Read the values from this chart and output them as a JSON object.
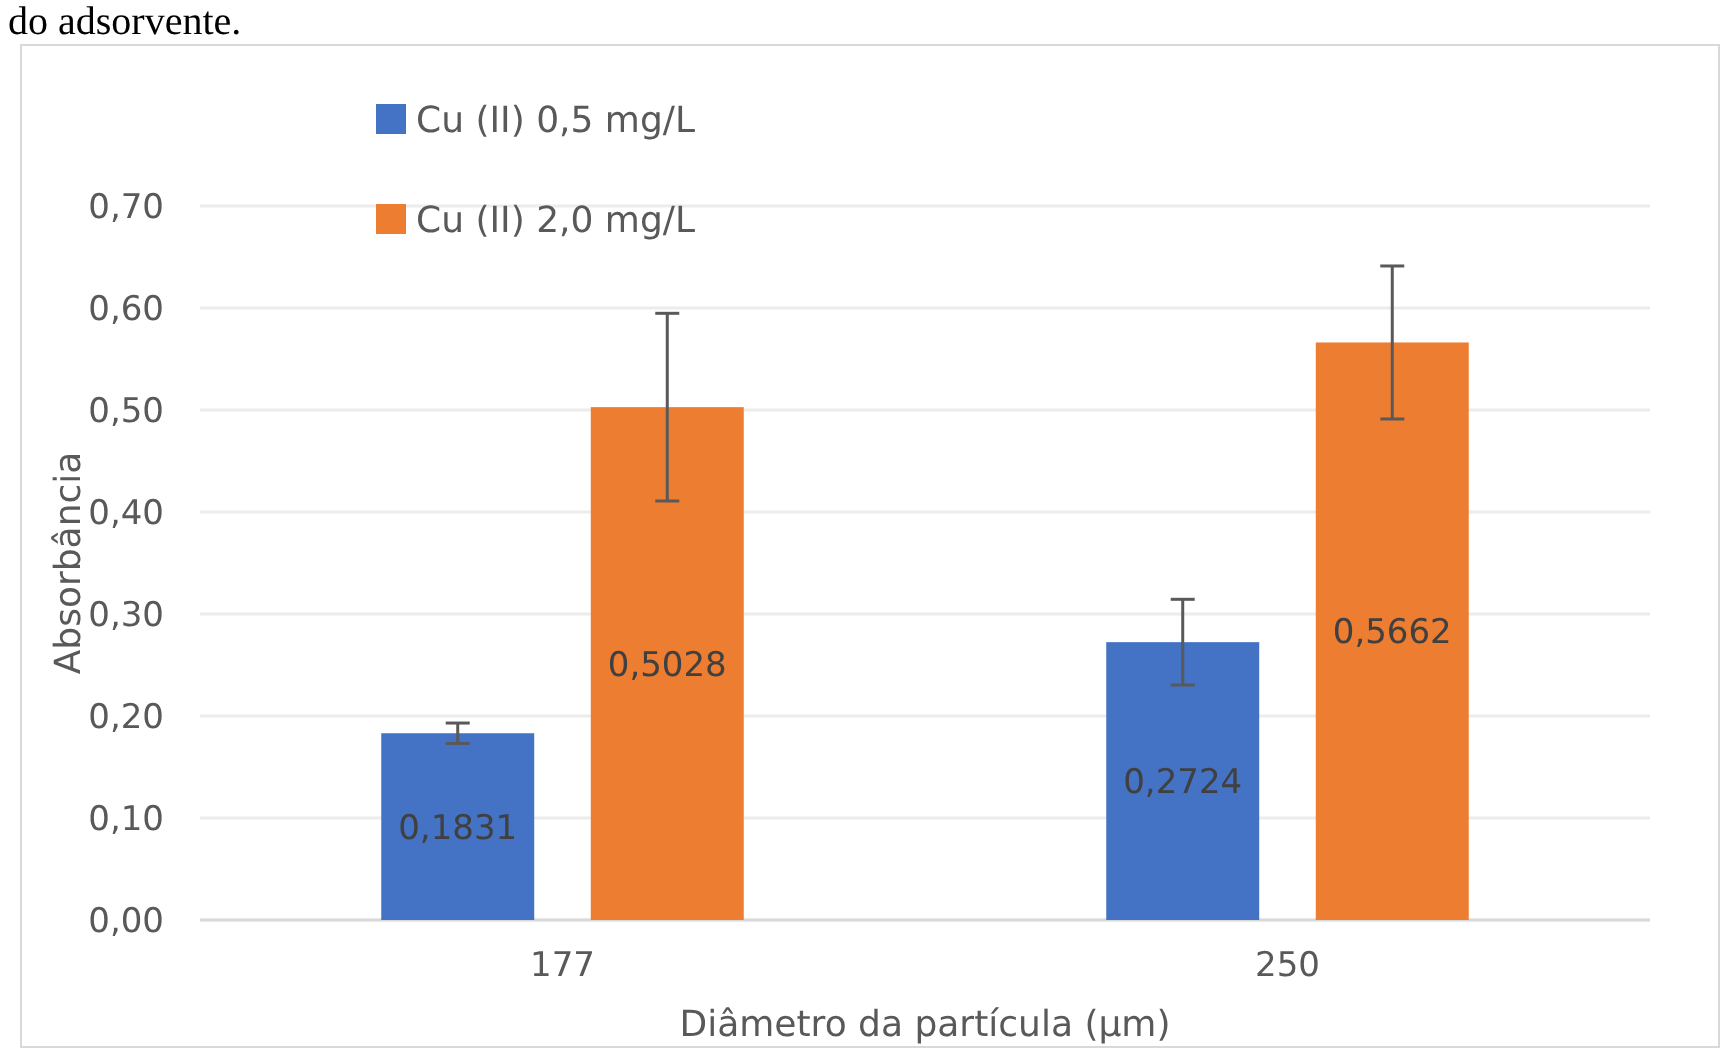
{
  "chart_data": {
    "type": "bar",
    "xlabel": "Diâmetro da partícula (µm)",
    "ylabel": "Absorbância",
    "annotations": [
      "do adsorvente."
    ],
    "categories": [
      "177",
      "250"
    ],
    "series": [
      {
        "name": "Cu (II) 0,5 mg/L",
        "color": "#4472c4",
        "values": [
          0.1831,
          0.2724
        ],
        "value_labels": [
          "0,1831",
          "0,2724"
        ],
        "errors": [
          0.01,
          0.042
        ]
      },
      {
        "name": "Cu (II) 2,0 mg/L",
        "color": "#ed7d31",
        "values": [
          0.5028,
          0.5662
        ],
        "value_labels": [
          "0,5028",
          "0,5662"
        ],
        "errors": [
          0.092,
          0.075
        ]
      }
    ],
    "ylim": [
      0,
      0.7
    ],
    "yticks": [
      {
        "value": 0,
        "label": "0,00"
      },
      {
        "value": 0.1,
        "label": "0,10"
      },
      {
        "value": 0.2,
        "label": "0,20"
      },
      {
        "value": 0.3,
        "label": "0,30"
      },
      {
        "value": 0.4,
        "label": "0,40"
      },
      {
        "value": 0.5,
        "label": "0,50"
      },
      {
        "value": 0.6,
        "label": "0,60"
      },
      {
        "value": 0.7,
        "label": "0,70"
      }
    ],
    "grid": "y",
    "legend": "top left"
  }
}
